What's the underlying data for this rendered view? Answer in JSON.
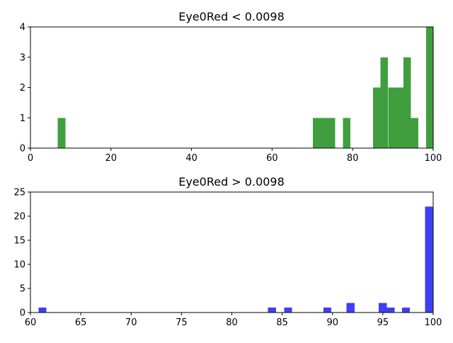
{
  "chart_data": [
    {
      "type": "bar",
      "title": "Eye0Red < 0.0098",
      "xlabel": "",
      "ylabel": "",
      "xlim": [
        0,
        100
      ],
      "ylim": [
        0,
        4
      ],
      "xticks": [
        0,
        20,
        40,
        60,
        80,
        100
      ],
      "yticks": [
        0,
        1,
        2,
        3,
        4
      ],
      "bin_width": 1.88,
      "color": "#3f9f3f",
      "bins": [
        {
          "x": 6.8,
          "count": 1
        },
        {
          "x": 70.1,
          "count": 1
        },
        {
          "x": 71.9,
          "count": 1
        },
        {
          "x": 73.8,
          "count": 1
        },
        {
          "x": 77.6,
          "count": 1
        },
        {
          "x": 85.1,
          "count": 2
        },
        {
          "x": 86.9,
          "count": 3
        },
        {
          "x": 88.8,
          "count": 2
        },
        {
          "x": 90.7,
          "count": 2
        },
        {
          "x": 92.6,
          "count": 3
        },
        {
          "x": 94.4,
          "count": 1
        },
        {
          "x": 98.2,
          "count": 4
        }
      ]
    },
    {
      "type": "bar",
      "title": "Eye0Red > 0.0098",
      "xlabel": "",
      "ylabel": "",
      "xlim": [
        60,
        100
      ],
      "ylim": [
        0,
        25
      ],
      "xticks": [
        60,
        65,
        70,
        75,
        80,
        85,
        90,
        95,
        100
      ],
      "yticks": [
        0,
        5,
        10,
        15,
        20,
        25
      ],
      "bin_width": 0.78,
      "color": "#3f3ff5",
      "bins": [
        {
          "x": 60.8,
          "count": 1
        },
        {
          "x": 83.6,
          "count": 1
        },
        {
          "x": 85.2,
          "count": 1
        },
        {
          "x": 89.1,
          "count": 1
        },
        {
          "x": 91.4,
          "count": 2
        },
        {
          "x": 94.6,
          "count": 2
        },
        {
          "x": 95.4,
          "count": 1
        },
        {
          "x": 96.9,
          "count": 1
        },
        {
          "x": 99.2,
          "count": 22
        }
      ]
    }
  ]
}
